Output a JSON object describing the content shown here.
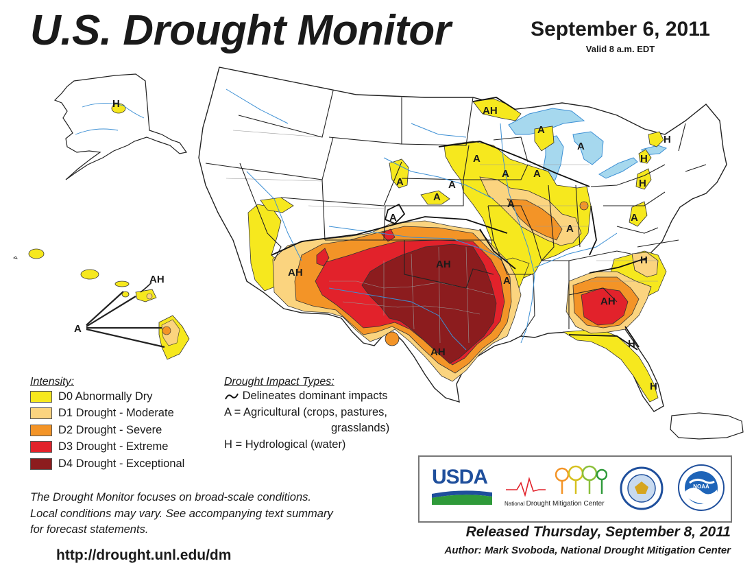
{
  "header": {
    "title": "U.S. Drought Monitor",
    "date": "September 6, 2011",
    "valid": "Valid 8 a.m. EDT"
  },
  "legend_intensity": {
    "heading": "Intensity:",
    "items": [
      {
        "label": "D0 Abnormally Dry",
        "color": "#f6e81e"
      },
      {
        "label": "D1 Drought - Moderate",
        "color": "#fbd47f"
      },
      {
        "label": "D2 Drought - Severe",
        "color": "#f39427"
      },
      {
        "label": "D3 Drought - Extreme",
        "color": "#e2222b"
      },
      {
        "label": "D4 Drought - Exceptional",
        "color": "#8c1c1e"
      }
    ]
  },
  "legend_impacts": {
    "heading": "Drought Impact Types:",
    "delineates": "Delineates dominant impacts",
    "agricultural_1": "A = Agricultural (crops, pastures,",
    "agricultural_2": "grasslands)",
    "hydrological": "H = Hydrological (water)"
  },
  "note": {
    "line1": "The Drought Monitor focuses on broad-scale conditions.",
    "line2": "Local conditions may vary. See accompanying text summary",
    "line3": "for forecast statements."
  },
  "url": "http://drought.unl.edu/dm",
  "released": "Released Thursday, September 8, 2011",
  "author": "Author: Mark Svoboda, National Drought Mitigation Center",
  "logos": {
    "usda": "USDA",
    "ndmc_1": "National",
    "ndmc_2": "Drought Mitigation Center",
    "noaa": "NOAA"
  },
  "map_labels": {
    "alaska_h": "H",
    "hawaii_ah": "AH",
    "hawaii_a": "A",
    "mn_ah": "AH",
    "wi_a": "A",
    "mi_a": "A",
    "ny_h": "H",
    "ny_h2": "H",
    "pa_h": "H",
    "mn_a": "A",
    "mn_a2": "A",
    "sd_a": "A",
    "ne_a": "A",
    "ne_a2": "A",
    "il_a": "A",
    "ia_a": "A",
    "in_a": "A",
    "co_a": "A",
    "va_a": "A",
    "ar_a": "A",
    "nc_h": "H",
    "az_ah": "AH",
    "ok_ah": "AH",
    "ga_ah": "AH",
    "tx_ah": "AH",
    "fl_h": "H",
    "fl_h2": "H"
  },
  "colors": {
    "water": "#a6d8ee",
    "river": "#3c8fd4",
    "state_border": "#222222",
    "county_border": "#9a9a9a"
  }
}
